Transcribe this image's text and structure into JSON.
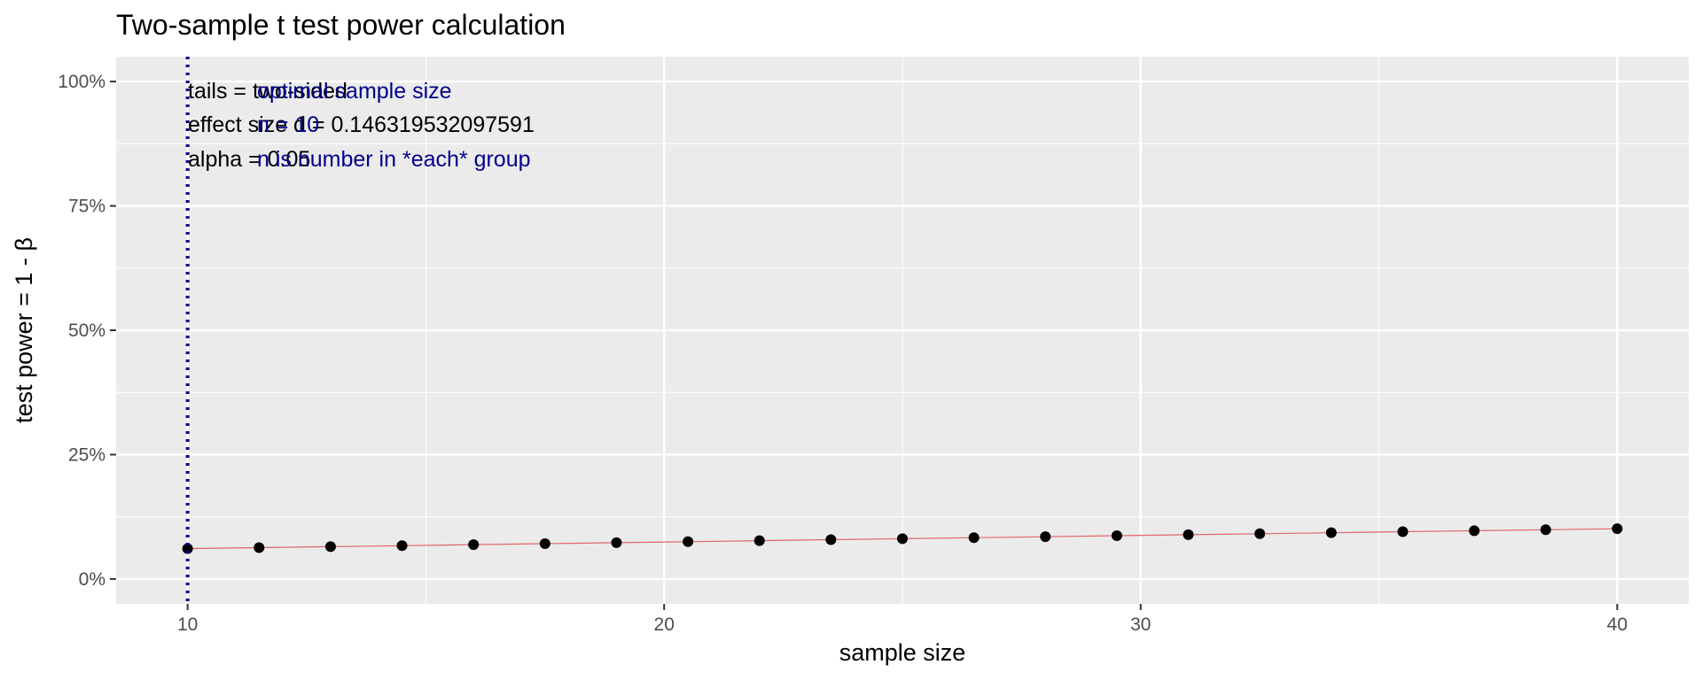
{
  "chart_data": {
    "type": "scatter",
    "title": "Two-sample t test power calculation",
    "xlabel": "sample size",
    "ylabel": "test power = 1 - β",
    "xlim": [
      8.5,
      41.5
    ],
    "ylim": [
      -0.05,
      1.05
    ],
    "x_ticks": [
      10,
      20,
      30,
      40
    ],
    "x_tick_labels": [
      "10",
      "20",
      "30",
      "40"
    ],
    "y_ticks": [
      0,
      0.25,
      0.5,
      0.75,
      1.0
    ],
    "y_tick_labels": [
      "0%",
      "25%",
      "50%",
      "75%",
      "100%"
    ],
    "grid": true,
    "points": {
      "x": [
        10,
        11.5,
        13,
        14.5,
        16,
        17.5,
        19,
        20.5,
        22,
        23.5,
        25,
        26.5,
        28,
        29.5,
        31,
        32.5,
        34,
        35.5,
        37,
        38.5,
        40
      ],
      "y": [
        0.061,
        0.063,
        0.065,
        0.067,
        0.069,
        0.071,
        0.073,
        0.075,
        0.077,
        0.079,
        0.081,
        0.083,
        0.085,
        0.087,
        0.089,
        0.091,
        0.093,
        0.095,
        0.097,
        0.099,
        0.101
      ]
    },
    "fit_line_color": "#e06666",
    "point_color": "#000000",
    "vline": {
      "x": 10,
      "color": "#00008b",
      "style": "dotted"
    },
    "annotations_left": [
      "tails = two-sided",
      "effect size d = 0.146319532097591",
      "alpha = 0.05"
    ],
    "annotations_right": [
      "optimal sample size",
      "n = 10",
      "n is number in *each* group"
    ]
  }
}
